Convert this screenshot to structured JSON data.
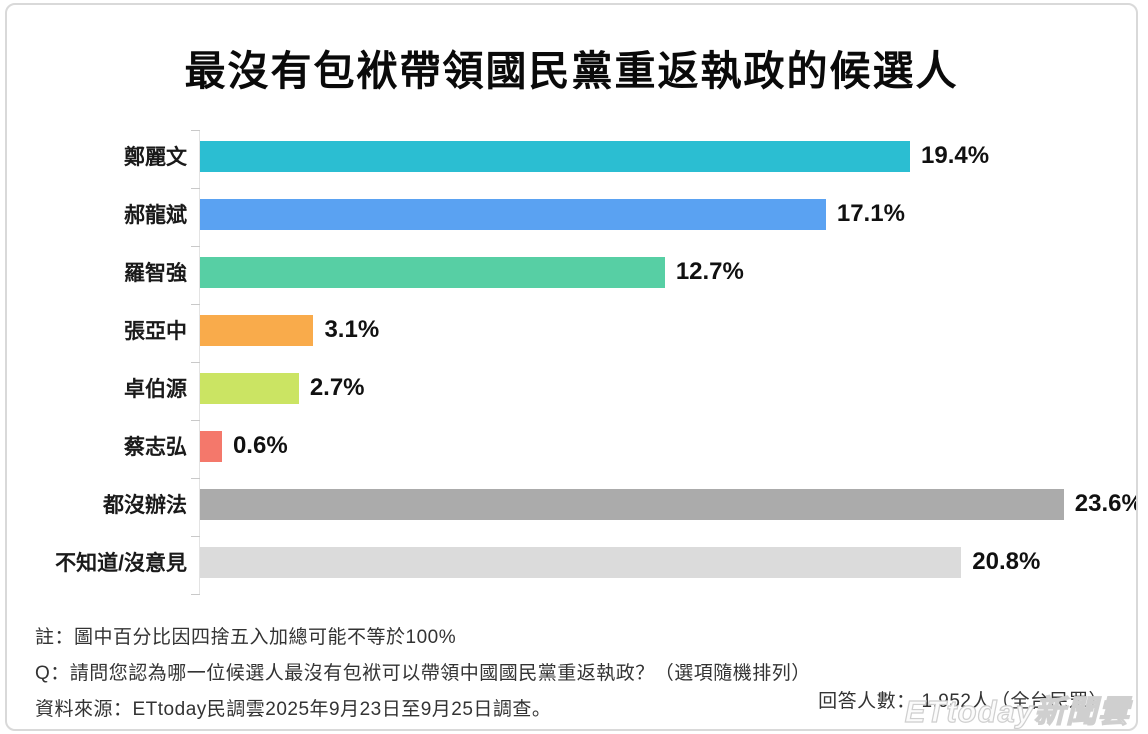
{
  "title": "最沒有包袱帶領國民黨重返執政的候選人",
  "chart_data": {
    "type": "bar",
    "orientation": "horizontal",
    "title": "最沒有包袱帶領國民黨重返執政的候選人",
    "categories": [
      "鄭麗文",
      "郝龍斌",
      "羅智強",
      "張亞中",
      "卓伯源",
      "蔡志弘",
      "都沒辦法",
      "不知道/沒意見"
    ],
    "values": [
      19.4,
      17.1,
      12.7,
      3.1,
      2.7,
      0.6,
      23.6,
      20.8
    ],
    "value_labels": [
      "19.4%",
      "17.1%",
      "12.7%",
      "3.1%",
      "2.7%",
      "0.6%",
      "23.6%",
      "20.8%"
    ],
    "bar_colors": [
      "#2BBED2",
      "#5AA2F2",
      "#57CFA4",
      "#F9AB4B",
      "#CBE463",
      "#F4786B",
      "#ABABAB",
      "#DBDBDB"
    ],
    "xlim": [
      0,
      25
    ],
    "grid": false,
    "legend": "none"
  },
  "footer": {
    "note": "註：圖中百分比因四捨五入加總可能不等於100%",
    "question": "Q：請問您認為哪一位候選人最沒有包袱可以帶領中國國民黨重返執政？（選項隨機排列）",
    "source": "資料來源：ETtoday民調雲2025年9月23日至9月25日調查。",
    "respondents": "回答人數： 1,952人（全台民眾）"
  },
  "watermark": "ETtoday新聞雲"
}
